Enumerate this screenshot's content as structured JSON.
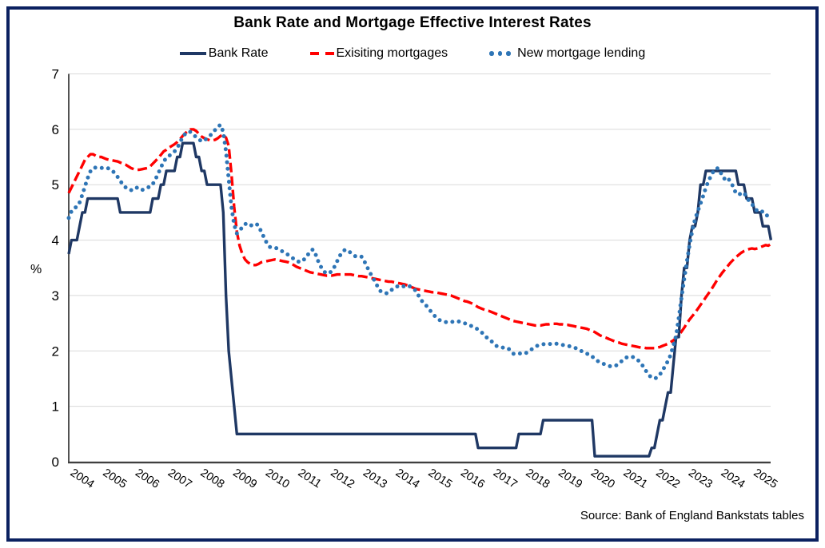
{
  "chart_data": {
    "type": "line",
    "title": "Bank Rate and Mortgage Effective Interest Rates",
    "ylabel": "%",
    "source": "Source: Bank of England Bankstats tables",
    "ylim": [
      0,
      7
    ],
    "y_ticks": [
      0,
      1,
      2,
      3,
      4,
      5,
      6,
      7
    ],
    "x_ticks": [
      2004,
      2005,
      2006,
      2007,
      2008,
      2009,
      2010,
      2011,
      2012,
      2013,
      2014,
      2015,
      2016,
      2017,
      2018,
      2019,
      2020,
      2021,
      2022,
      2023,
      2024,
      2025
    ],
    "x_start_year": 2004,
    "frequency": "monthly",
    "grid": "horizontal",
    "legend_position": "top",
    "colors": {
      "bank_rate": "#1f3864",
      "existing": "#ff0000",
      "new_lending": "#2e75b6",
      "grid": "#d9d9d9",
      "axis": "#3f3f3f",
      "frame_border": "#0b2160"
    },
    "draw_order": [
      1,
      0,
      2
    ],
    "series": [
      {
        "name": "Bank Rate",
        "color": "#1f3864",
        "style": "solid",
        "values": [
          3.75,
          4,
          4,
          4,
          4.25,
          4.5,
          4.5,
          4.75,
          4.75,
          4.75,
          4.75,
          4.75,
          4.75,
          4.75,
          4.75,
          4.75,
          4.75,
          4.75,
          4.75,
          4.5,
          4.5,
          4.5,
          4.5,
          4.5,
          4.5,
          4.5,
          4.5,
          4.5,
          4.5,
          4.5,
          4.5,
          4.75,
          4.75,
          4.75,
          5,
          5,
          5.25,
          5.25,
          5.25,
          5.25,
          5.5,
          5.5,
          5.75,
          5.75,
          5.75,
          5.75,
          5.75,
          5.5,
          5.5,
          5.25,
          5.25,
          5,
          5,
          5,
          5,
          5,
          5,
          4.5,
          3,
          2,
          1.5,
          1,
          0.5,
          0.5,
          0.5,
          0.5,
          0.5,
          0.5,
          0.5,
          0.5,
          0.5,
          0.5,
          0.5,
          0.5,
          0.5,
          0.5,
          0.5,
          0.5,
          0.5,
          0.5,
          0.5,
          0.5,
          0.5,
          0.5,
          0.5,
          0.5,
          0.5,
          0.5,
          0.5,
          0.5,
          0.5,
          0.5,
          0.5,
          0.5,
          0.5,
          0.5,
          0.5,
          0.5,
          0.5,
          0.5,
          0.5,
          0.5,
          0.5,
          0.5,
          0.5,
          0.5,
          0.5,
          0.5,
          0.5,
          0.5,
          0.5,
          0.5,
          0.5,
          0.5,
          0.5,
          0.5,
          0.5,
          0.5,
          0.5,
          0.5,
          0.5,
          0.5,
          0.5,
          0.5,
          0.5,
          0.5,
          0.5,
          0.5,
          0.5,
          0.5,
          0.5,
          0.5,
          0.5,
          0.5,
          0.5,
          0.5,
          0.5,
          0.5,
          0.5,
          0.5,
          0.5,
          0.5,
          0.5,
          0.5,
          0.5,
          0.5,
          0.5,
          0.5,
          0.5,
          0.5,
          0.5,
          0.25,
          0.25,
          0.25,
          0.25,
          0.25,
          0.25,
          0.25,
          0.25,
          0.25,
          0.25,
          0.25,
          0.25,
          0.25,
          0.25,
          0.25,
          0.5,
          0.5,
          0.5,
          0.5,
          0.5,
          0.5,
          0.5,
          0.5,
          0.5,
          0.75,
          0.75,
          0.75,
          0.75,
          0.75,
          0.75,
          0.75,
          0.75,
          0.75,
          0.75,
          0.75,
          0.75,
          0.75,
          0.75,
          0.75,
          0.75,
          0.75,
          0.75,
          0.75,
          0.1,
          0.1,
          0.1,
          0.1,
          0.1,
          0.1,
          0.1,
          0.1,
          0.1,
          0.1,
          0.1,
          0.1,
          0.1,
          0.1,
          0.1,
          0.1,
          0.1,
          0.1,
          0.1,
          0.1,
          0.1,
          0.25,
          0.25,
          0.5,
          0.75,
          0.75,
          1,
          1.25,
          1.25,
          1.75,
          2.25,
          2.25,
          3,
          3.5,
          3.5,
          4,
          4.25,
          4.25,
          4.5,
          5,
          5,
          5.25,
          5.25,
          5.25,
          5.25,
          5.25,
          5.25,
          5.25,
          5.25,
          5.25,
          5.25,
          5.25,
          5.25,
          5,
          5,
          5,
          4.75,
          4.75,
          4.75,
          4.5,
          4.5,
          4.5,
          4.25,
          4.25,
          4.25,
          4
        ]
      },
      {
        "name": "Exisiting mortgages",
        "color": "#ff0000",
        "style": "dashed",
        "values": [
          4.85,
          4.95,
          5.05,
          5.15,
          5.25,
          5.35,
          5.45,
          5.5,
          5.55,
          5.55,
          5.52,
          5.5,
          5.5,
          5.48,
          5.46,
          5.45,
          5.44,
          5.43,
          5.42,
          5.4,
          5.38,
          5.36,
          5.33,
          5.3,
          5.28,
          5.27,
          5.27,
          5.28,
          5.29,
          5.3,
          5.33,
          5.38,
          5.43,
          5.48,
          5.54,
          5.6,
          5.63,
          5.67,
          5.7,
          5.73,
          5.77,
          5.82,
          5.88,
          5.93,
          5.97,
          6,
          6,
          5.97,
          5.92,
          5.87,
          5.84,
          5.82,
          5.8,
          5.8,
          5.81,
          5.84,
          5.88,
          5.9,
          5.85,
          5.7,
          5.2,
          4.6,
          4.15,
          3.9,
          3.75,
          3.65,
          3.6,
          3.57,
          3.55,
          3.55,
          3.57,
          3.6,
          3.61,
          3.62,
          3.63,
          3.64,
          3.65,
          3.64,
          3.63,
          3.62,
          3.61,
          3.6,
          3.58,
          3.55,
          3.52,
          3.5,
          3.48,
          3.46,
          3.44,
          3.42,
          3.41,
          3.4,
          3.39,
          3.38,
          3.37,
          3.36,
          3.36,
          3.36,
          3.37,
          3.38,
          3.38,
          3.38,
          3.38,
          3.38,
          3.38,
          3.37,
          3.36,
          3.35,
          3.35,
          3.34,
          3.33,
          3.32,
          3.31,
          3.3,
          3.29,
          3.28,
          3.27,
          3.26,
          3.25,
          3.25,
          3.24,
          3.23,
          3.22,
          3.21,
          3.2,
          3.18,
          3.16,
          3.14,
          3.12,
          3.11,
          3.1,
          3.09,
          3.08,
          3.07,
          3.06,
          3.06,
          3.05,
          3.04,
          3.03,
          3.02,
          3.01,
          3,
          2.98,
          2.96,
          2.94,
          2.92,
          2.9,
          2.89,
          2.87,
          2.85,
          2.82,
          2.79,
          2.77,
          2.75,
          2.73,
          2.72,
          2.7,
          2.68,
          2.66,
          2.64,
          2.62,
          2.6,
          2.58,
          2.56,
          2.54,
          2.53,
          2.52,
          2.51,
          2.5,
          2.49,
          2.48,
          2.47,
          2.46,
          2.46,
          2.46,
          2.47,
          2.48,
          2.48,
          2.49,
          2.49,
          2.49,
          2.48,
          2.48,
          2.47,
          2.47,
          2.46,
          2.45,
          2.44,
          2.43,
          2.42,
          2.41,
          2.4,
          2.38,
          2.36,
          2.34,
          2.31,
          2.28,
          2.26,
          2.24,
          2.22,
          2.2,
          2.18,
          2.16,
          2.15,
          2.13,
          2.12,
          2.11,
          2.1,
          2.09,
          2.08,
          2.07,
          2.06,
          2.06,
          2.05,
          2.05,
          2.05,
          2.05,
          2.06,
          2.07,
          2.09,
          2.11,
          2.13,
          2.16,
          2.19,
          2.23,
          2.28,
          2.35,
          2.42,
          2.5,
          2.57,
          2.63,
          2.69,
          2.76,
          2.83,
          2.9,
          2.97,
          3.04,
          3.11,
          3.19,
          3.27,
          3.34,
          3.41,
          3.47,
          3.53,
          3.59,
          3.64,
          3.69,
          3.73,
          3.77,
          3.8,
          3.82,
          3.84,
          3.85,
          3.84,
          3.85,
          3.87,
          3.89,
          3.91,
          3.9,
          3.93
        ]
      },
      {
        "name": "New mortgage lending",
        "color": "#2e75b6",
        "style": "dotted",
        "values": [
          4.4,
          4.52,
          4.58,
          4.6,
          4.68,
          4.82,
          4.97,
          5.12,
          5.24,
          5.3,
          5.31,
          5.3,
          5.3,
          5.31,
          5.3,
          5.29,
          5.26,
          5.2,
          5.14,
          5.07,
          5,
          4.95,
          4.91,
          4.9,
          4.94,
          4.95,
          4.91,
          4.9,
          4.93,
          4.95,
          4.96,
          5.01,
          5.1,
          5.2,
          5.31,
          5.42,
          5.48,
          5.52,
          5.56,
          5.6,
          5.66,
          5.76,
          5.86,
          5.92,
          5.96,
          5.95,
          5.9,
          5.86,
          5.82,
          5.78,
          5.8,
          5.84,
          5.88,
          5.93,
          5.99,
          6.05,
          6.08,
          5.95,
          5.6,
          5.1,
          4.6,
          4.28,
          4.12,
          4.16,
          4.24,
          4.29,
          4.3,
          4.26,
          4.28,
          4.3,
          4.26,
          4.15,
          4.05,
          3.95,
          3.88,
          3.86,
          3.86,
          3.85,
          3.82,
          3.79,
          3.77,
          3.73,
          3.7,
          3.66,
          3.64,
          3.6,
          3.62,
          3.66,
          3.72,
          3.8,
          3.83,
          3.75,
          3.62,
          3.52,
          3.44,
          3.4,
          3.4,
          3.44,
          3.52,
          3.62,
          3.72,
          3.79,
          3.83,
          3.81,
          3.77,
          3.73,
          3.7,
          3.71,
          3.7,
          3.62,
          3.52,
          3.42,
          3.33,
          3.25,
          3.15,
          3.08,
          3.05,
          3.04,
          3.05,
          3.1,
          3.12,
          3.16,
          3.18,
          3.17,
          3.16,
          3.18,
          3.16,
          3.12,
          3.09,
          3,
          2.92,
          2.85,
          2.81,
          2.75,
          2.68,
          2.63,
          2.58,
          2.55,
          2.53,
          2.52,
          2.52,
          2.53,
          2.52,
          2.53,
          2.53,
          2.52,
          2.5,
          2.48,
          2.46,
          2.44,
          2.42,
          2.38,
          2.35,
          2.3,
          2.25,
          2.2,
          2.17,
          2.12,
          2.08,
          2.07,
          2.06,
          2.06,
          2.05,
          2,
          1.95,
          1.94,
          1.95,
          1.96,
          1.95,
          1.97,
          2,
          2.04,
          2.07,
          2.1,
          2.11,
          2.12,
          2.13,
          2.13,
          2.12,
          2.13,
          2.13,
          2.12,
          2.11,
          2.1,
          2.09,
          2.08,
          2.06,
          2.05,
          2.03,
          2,
          1.97,
          1.95,
          1.94,
          1.9,
          1.86,
          1.82,
          1.79,
          1.77,
          1.75,
          1.73,
          1.72,
          1.72,
          1.74,
          1.77,
          1.82,
          1.86,
          1.89,
          1.9,
          1.89,
          1.87,
          1.83,
          1.78,
          1.71,
          1.63,
          1.56,
          1.52,
          1.5,
          1.52,
          1.57,
          1.65,
          1.73,
          1.82,
          1.93,
          2.1,
          2.27,
          2.6,
          2.96,
          3.3,
          3.62,
          3.92,
          4.18,
          4.38,
          4.52,
          4.66,
          4.8,
          4.95,
          5.07,
          5.17,
          5.26,
          5.3,
          5.28,
          5.15,
          5.1,
          5.13,
          5.05,
          4.97,
          4.85,
          4.82,
          4.84,
          4.86,
          4.78,
          4.7,
          4.65,
          4.58,
          4.52,
          4.5,
          4.52,
          4.47,
          4.42,
          4.36
        ]
      }
    ]
  }
}
